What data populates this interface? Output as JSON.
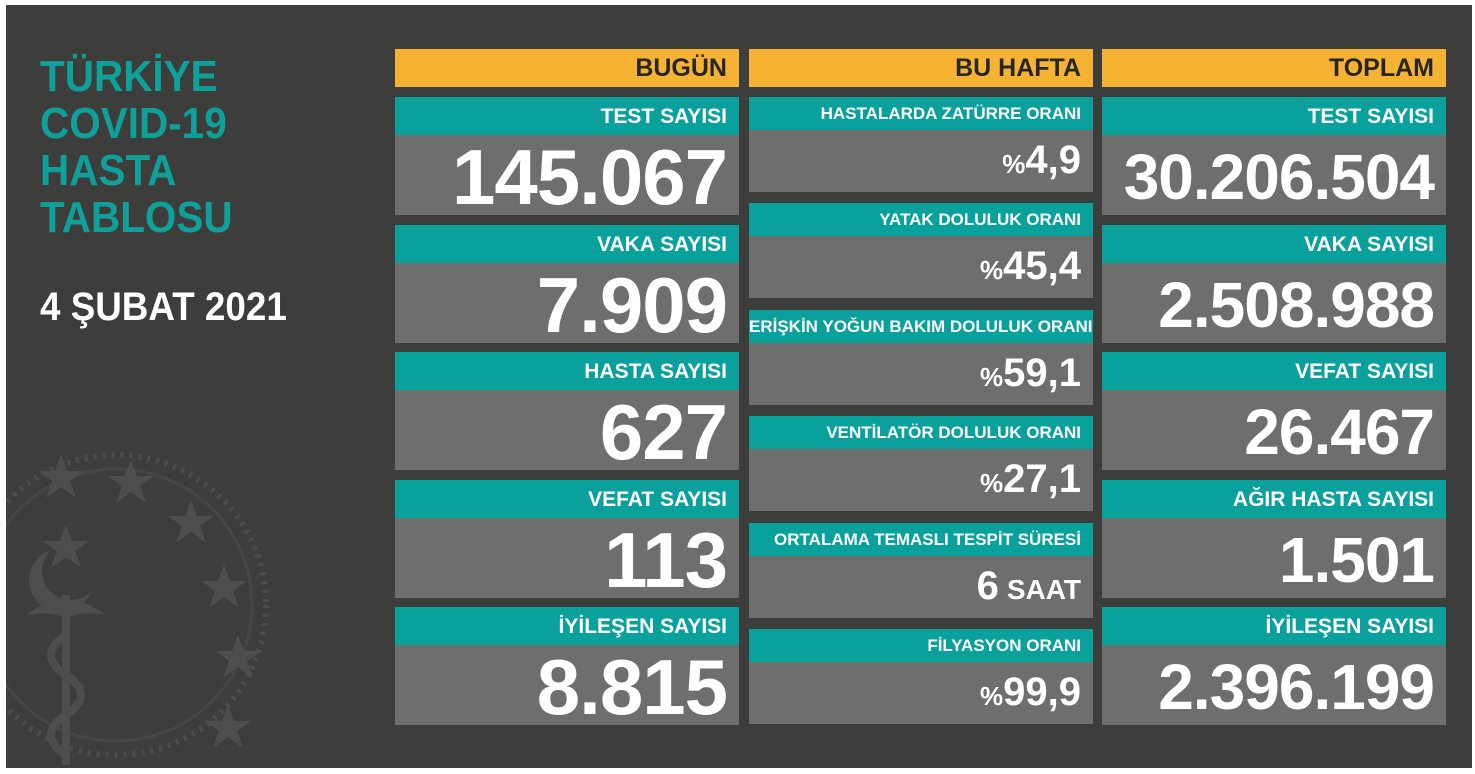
{
  "title_lines": [
    "TÜRKİYE",
    "COVID-19",
    "HASTA",
    "TABLOSU"
  ],
  "date": "4 ŞUBAT 2021",
  "colors": {
    "teal": "#0aa09b",
    "orange": "#f6b233",
    "background": "#3d3d3c",
    "value_panel": "#6e6e6e"
  },
  "today": {
    "header": "BUGÜN",
    "items": [
      {
        "label": "TEST SAYISI",
        "value": "145.067"
      },
      {
        "label": "VAKA SAYISI",
        "value": "7.909"
      },
      {
        "label": "HASTA SAYISI",
        "value": "627"
      },
      {
        "label": "VEFAT SAYISI",
        "value": "113"
      },
      {
        "label": "İYİLEŞEN SAYISI",
        "value": "8.815"
      }
    ]
  },
  "week": {
    "header": "BU HAFTA",
    "items": [
      {
        "label": "HASTALARDA ZATÜRRE ORANI",
        "prefix": "%",
        "value": "4,9",
        "unit": ""
      },
      {
        "label": "YATAK DOLULUK ORANI",
        "prefix": "%",
        "value": "45,4",
        "unit": ""
      },
      {
        "label": "ERİŞKİN YOĞUN BAKIM DOLULUK ORANI",
        "prefix": "%",
        "value": "59,1",
        "unit": ""
      },
      {
        "label": "VENTİLATÖR DOLULUK ORANI",
        "prefix": "%",
        "value": "27,1",
        "unit": ""
      },
      {
        "label": "ORTALAMA TEMASLI TESPİT SÜRESİ",
        "prefix": "",
        "value": "6",
        "unit": "SAAT"
      },
      {
        "label": "FİLYASYON ORANI",
        "prefix": "%",
        "value": "99,9",
        "unit": ""
      }
    ]
  },
  "total": {
    "header": "TOPLAM",
    "items": [
      {
        "label": "TEST SAYISI",
        "value": "30.206.504"
      },
      {
        "label": "VAKA SAYISI",
        "value": "2.508.988"
      },
      {
        "label": "VEFAT SAYISI",
        "value": "26.467"
      },
      {
        "label": "AĞIR HASTA SAYISI",
        "value": "1.501"
      },
      {
        "label": "İYİLEŞEN SAYISI",
        "value": "2.396.199"
      }
    ]
  }
}
